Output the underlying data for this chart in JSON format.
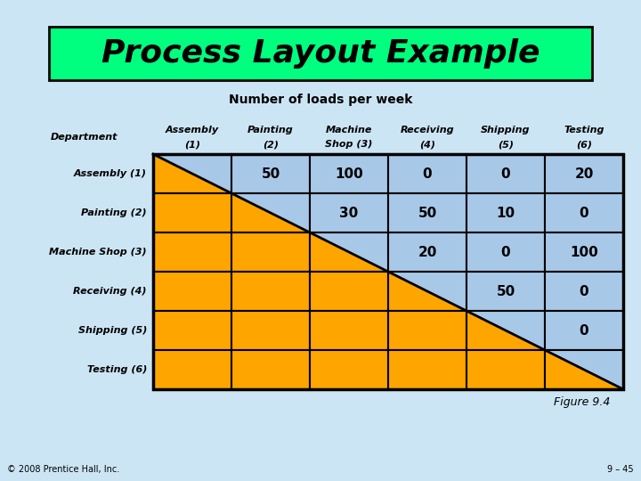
{
  "title": "Process Layout Example",
  "subtitle": "Number of loads per week",
  "bg_color": "#cce5f5",
  "title_bg": "#00ff7f",
  "row_labels": [
    "Assembly (1)",
    "Painting (2)",
    "Machine Shop (3)",
    "Receiving (4)",
    "Shipping (5)",
    "Testing (6)"
  ],
  "col_headers_line1": [
    "Assembly",
    "Painting",
    "Machine",
    "Receiving",
    "Shipping",
    "Testing"
  ],
  "col_headers_line2": [
    "(1)",
    "(2)",
    "Shop (3)",
    "(4)",
    "(5)",
    "(6)"
  ],
  "values": [
    [
      null,
      50,
      100,
      0,
      0,
      20
    ],
    [
      null,
      null,
      30,
      50,
      10,
      0
    ],
    [
      null,
      null,
      null,
      20,
      0,
      100
    ],
    [
      null,
      null,
      null,
      null,
      50,
      0
    ],
    [
      null,
      null,
      null,
      null,
      null,
      0
    ],
    [
      null,
      null,
      null,
      null,
      null,
      null
    ]
  ],
  "orange_color": "#FFA500",
  "blue_color": "#A8C8E8",
  "figure_label": "Figure 9.4",
  "footer_left": "© 2008 Prentice Hall, Inc.",
  "footer_right": "9 – 45"
}
